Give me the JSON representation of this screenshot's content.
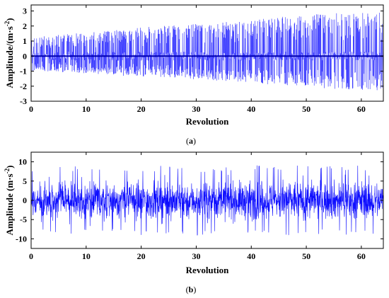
{
  "chart_data": [
    {
      "type": "line",
      "panel_label": "(a)",
      "xlabel": "Revolution",
      "ylabel_main": "Amplitude/(m·s",
      "ylabel_sup": "-2",
      "ylabel_close": ")",
      "xlim": [
        0,
        64
      ],
      "ylim": [
        -3,
        3.4
      ],
      "x_ticks": [
        0,
        10,
        20,
        30,
        40,
        50,
        60
      ],
      "y_ticks": [
        -3,
        -2,
        -1,
        0,
        1,
        2,
        3
      ],
      "grid": false,
      "color": "#0000ff",
      "series": [
        {
          "x": [
            0,
            8,
            16,
            24,
            32,
            40,
            48,
            56,
            64
          ],
          "upper": [
            1.3,
            1.5,
            1.8,
            2.0,
            2.2,
            2.4,
            2.7,
            2.9,
            3.0
          ],
          "lower": [
            -1.0,
            -1.1,
            -1.3,
            -1.4,
            -1.6,
            -1.8,
            -2.0,
            -2.2,
            -2.3
          ]
        }
      ]
    },
    {
      "type": "line",
      "panel_label": "(b)",
      "xlabel": "Revolution",
      "ylabel_main": "Amplitude (m·s",
      "ylabel_sup": "-2",
      "ylabel_close": ")",
      "xlim": [
        0,
        64
      ],
      "ylim": [
        -12.5,
        12.5
      ],
      "x_ticks": [
        0,
        10,
        20,
        30,
        40,
        50,
        60
      ],
      "y_ticks": [
        -10,
        -5,
        0,
        5,
        10
      ],
      "grid": false,
      "color": "#0000ff",
      "series": [
        {
          "x": [
            0,
            8,
            16,
            24,
            32,
            40,
            48,
            56,
            64
          ],
          "upper": [
            8.5,
            9.0,
            8.0,
            9.0,
            8.5,
            9.0,
            9.5,
            9.0,
            9.0
          ],
          "lower": [
            -8.5,
            -9.0,
            -8.5,
            -9.5,
            -9.0,
            -9.0,
            -9.5,
            -9.0,
            -9.0
          ]
        }
      ]
    }
  ]
}
